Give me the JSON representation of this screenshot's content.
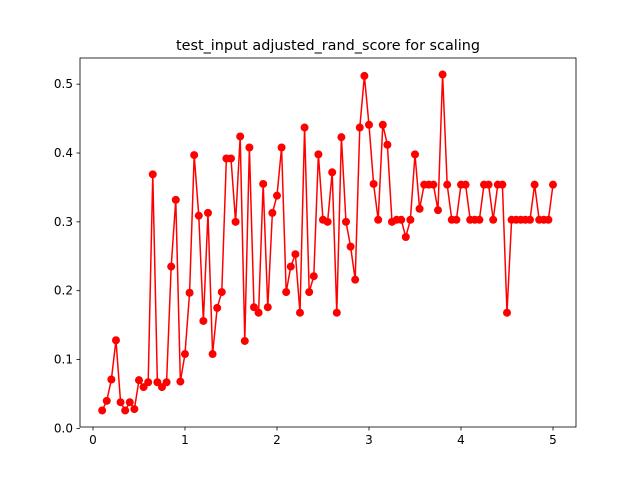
{
  "chart_data": {
    "type": "line",
    "title": "test_input adjusted_rand_score for scaling",
    "x": [
      0.1,
      0.15,
      0.2,
      0.25,
      0.3,
      0.35,
      0.4,
      0.45,
      0.5,
      0.55,
      0.6,
      0.65,
      0.7,
      0.75,
      0.8,
      0.85,
      0.9,
      0.95,
      1.0,
      1.05,
      1.1,
      1.15,
      1.2,
      1.25,
      1.3,
      1.35,
      1.4,
      1.45,
      1.5,
      1.55,
      1.6,
      1.65,
      1.7,
      1.75,
      1.8,
      1.85,
      1.9,
      1.95,
      2.0,
      2.05,
      2.1,
      2.15,
      2.2,
      2.25,
      2.3,
      2.35,
      2.4,
      2.45,
      2.5,
      2.55,
      2.6,
      2.65,
      2.7,
      2.75,
      2.8,
      2.85,
      2.9,
      2.95,
      3.0,
      3.05,
      3.1,
      3.15,
      3.2,
      3.25,
      3.3,
      3.35,
      3.4,
      3.45,
      3.5,
      3.55,
      3.6,
      3.65,
      3.7,
      3.75,
      3.8,
      3.85,
      3.9,
      3.95,
      4.0,
      4.05,
      4.1,
      4.15,
      4.2,
      4.25,
      4.3,
      4.35,
      4.4,
      4.45,
      4.5,
      4.55,
      4.6,
      4.65,
      4.7,
      4.75,
      4.8,
      4.85,
      4.9,
      4.95,
      5.0
    ],
    "series": [
      {
        "color": "#ff0000",
        "values": [
          0.026,
          0.04,
          0.071,
          0.128,
          0.038,
          0.026,
          0.038,
          0.028,
          0.07,
          0.06,
          0.067,
          0.369,
          0.067,
          0.06,
          0.067,
          0.235,
          0.332,
          0.068,
          0.108,
          0.197,
          0.397,
          0.309,
          0.156,
          0.313,
          0.108,
          0.175,
          0.198,
          0.392,
          0.392,
          0.3,
          0.424,
          0.127,
          0.408,
          0.176,
          0.168,
          0.355,
          0.176,
          0.313,
          0.338,
          0.408,
          0.198,
          0.235,
          0.253,
          0.168,
          0.437,
          0.198,
          0.221,
          0.398,
          0.303,
          0.3,
          0.372,
          0.168,
          0.423,
          0.3,
          0.264,
          0.216,
          0.437,
          0.512,
          0.441,
          0.355,
          0.303,
          0.441,
          0.412,
          0.3,
          0.303,
          0.303,
          0.278,
          0.303,
          0.398,
          0.319,
          0.354,
          0.354,
          0.354,
          0.317,
          0.514,
          0.354,
          0.303,
          0.303,
          0.354,
          0.354,
          0.303,
          0.303,
          0.303,
          0.354,
          0.354,
          0.303,
          0.354,
          0.354,
          0.168,
          0.303,
          0.303,
          0.303,
          0.303,
          0.303,
          0.354,
          0.303,
          0.303,
          0.303,
          0.354
        ]
      }
    ],
    "xlim": [
      -0.141,
      5.25
    ],
    "xticks": [
      0,
      1,
      2,
      3,
      4,
      5
    ],
    "ylim": [
      0.002,
      0.538
    ],
    "yticks": [
      {
        "value": 0,
        "label": "0.0"
      },
      0.1,
      0.2,
      0.3,
      0.4,
      0.5
    ]
  }
}
